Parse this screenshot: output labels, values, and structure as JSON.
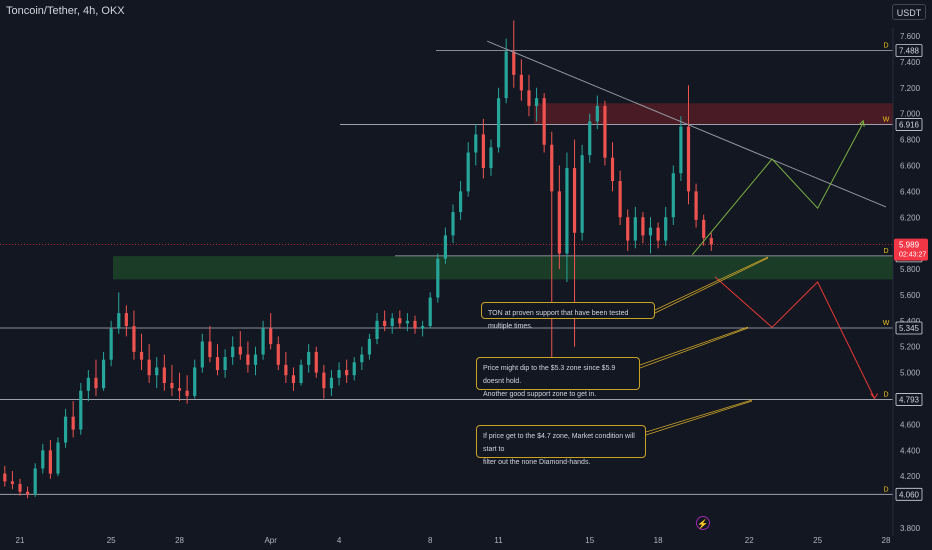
{
  "header": {
    "title": "Toncoin/Tether, 4h, OKX",
    "currency_button": "USDT"
  },
  "colors": {
    "background": "#131722",
    "up": "#26a69a",
    "down": "#ef5350",
    "trendline": "#9598a1",
    "support_zone": "#1f4a2a",
    "resistance_zone": "#5c1f27",
    "green_path": "#7cb342",
    "red_path": "#e53935",
    "note_border": "#c9a227",
    "price_tag": "#f23645"
  },
  "chart_data": {
    "type": "candlestick",
    "title": "Toncoin/Tether, 4h, OKX",
    "x_ticks": [
      "21",
      "25",
      "28",
      "Apr",
      "4",
      "8",
      "11",
      "15",
      "18",
      "22",
      "25",
      "28"
    ],
    "x_tick_dates": [
      "2024-03-21",
      "2024-03-25",
      "2024-03-28",
      "2024-04-01",
      "2024-04-04",
      "2024-04-08",
      "2024-04-11",
      "2024-04-15",
      "2024-04-18",
      "2024-04-22",
      "2024-04-25",
      "2024-04-28"
    ],
    "y_ticks": [
      7.6,
      7.4,
      7.2,
      7.0,
      6.8,
      6.6,
      6.4,
      6.2,
      6.0,
      5.8,
      5.6,
      5.4,
      5.2,
      5.0,
      4.8,
      4.6,
      4.4,
      4.2,
      4.0,
      3.8
    ],
    "y_tick_labels": [
      "7.600",
      "7.400",
      "7.200",
      "7.000",
      "6.800",
      "6.600",
      "6.400",
      "6.200",
      "",
      "5.800",
      "5.600",
      "5.400",
      "5.200",
      "5.000",
      "",
      "4.600",
      "4.400",
      "4.200",
      "",
      "3.800"
    ],
    "ylim": [
      3.75,
      7.75
    ],
    "xlim": [
      "2024-03-21",
      "2024-04-28"
    ],
    "current_price": {
      "value": 5.989,
      "label": "5.989",
      "countdown": "02:43:27"
    },
    "levels": [
      {
        "value": 7.488,
        "label": "7.488",
        "tag": "D"
      },
      {
        "value": 6.916,
        "label": "6.916",
        "tag": "W"
      },
      {
        "value": 5.902,
        "label": "5.902",
        "tag": "D"
      },
      {
        "value": 5.345,
        "label": "5.345",
        "tag": "W"
      },
      {
        "value": 4.793,
        "label": "4.793",
        "tag": "D"
      },
      {
        "value": 4.06,
        "label": "4.060",
        "tag": "D"
      }
    ],
    "support_zone": {
      "low": 5.72,
      "high": 5.9
    },
    "resistance_zone": {
      "low": 6.92,
      "high": 7.08
    },
    "trendline": [
      {
        "date": "2024-04-10 12:00",
        "value": 7.56
      },
      {
        "date": "2024-04-28",
        "value": 6.28
      }
    ],
    "projection_bull": [
      {
        "date": "2024-04-19 12:00",
        "value": 5.91
      },
      {
        "date": "2024-04-23",
        "value": 6.65
      },
      {
        "date": "2024-04-25",
        "value": 6.27
      },
      {
        "date": "2024-04-27",
        "value": 6.93
      }
    ],
    "projection_bear": [
      {
        "date": "2024-04-20 12:00",
        "value": 5.74
      },
      {
        "date": "2024-04-23",
        "value": 5.35
      },
      {
        "date": "2024-04-25",
        "value": 5.7
      },
      {
        "date": "2024-04-27 12:00",
        "value": 4.8
      }
    ],
    "annotations": [
      {
        "lines": [
          "TON at proven support that have been tested multiple times."
        ]
      },
      {
        "lines": [
          "Price might dip to the $5.3 zone since $5.9 doesnt hold.",
          "Another good support zone to get in."
        ]
      },
      {
        "lines": [
          "If price get to the $4.7 zone, Market condition will start to",
          "filter out the none Diamond-hands."
        ]
      }
    ],
    "candles": [
      {
        "date": "2024-03-20 00:00",
        "o": 4.3,
        "h": 4.35,
        "l": 4.18,
        "c": 4.22
      },
      {
        "date": "2024-03-20 08:00",
        "o": 4.22,
        "h": 4.28,
        "l": 4.12,
        "c": 4.16
      },
      {
        "date": "2024-03-20 16:00",
        "o": 4.16,
        "h": 4.24,
        "l": 4.1,
        "c": 4.14
      },
      {
        "date": "2024-03-21 00:00",
        "o": 4.14,
        "h": 4.18,
        "l": 4.05,
        "c": 4.08
      },
      {
        "date": "2024-03-21 08:00",
        "o": 4.08,
        "h": 4.12,
        "l": 4.03,
        "c": 4.06
      },
      {
        "date": "2024-03-21 16:00",
        "o": 4.06,
        "h": 4.3,
        "l": 4.04,
        "c": 4.26
      },
      {
        "date": "2024-03-22 00:00",
        "o": 4.26,
        "h": 4.45,
        "l": 4.22,
        "c": 4.4
      },
      {
        "date": "2024-03-22 08:00",
        "o": 4.4,
        "h": 4.48,
        "l": 4.18,
        "c": 4.22
      },
      {
        "date": "2024-03-22 16:00",
        "o": 4.22,
        "h": 4.5,
        "l": 4.2,
        "c": 4.46
      },
      {
        "date": "2024-03-23 00:00",
        "o": 4.46,
        "h": 4.72,
        "l": 4.42,
        "c": 4.66
      },
      {
        "date": "2024-03-23 08:00",
        "o": 4.66,
        "h": 4.78,
        "l": 4.5,
        "c": 4.56
      },
      {
        "date": "2024-03-23 16:00",
        "o": 4.56,
        "h": 4.92,
        "l": 4.52,
        "c": 4.86
      },
      {
        "date": "2024-03-24 00:00",
        "o": 4.86,
        "h": 5.02,
        "l": 4.78,
        "c": 4.96
      },
      {
        "date": "2024-03-24 08:00",
        "o": 4.96,
        "h": 5.1,
        "l": 4.82,
        "c": 4.88
      },
      {
        "date": "2024-03-24 16:00",
        "o": 4.88,
        "h": 5.16,
        "l": 4.86,
        "c": 5.1
      },
      {
        "date": "2024-03-25 00:00",
        "o": 5.1,
        "h": 5.4,
        "l": 5.05,
        "c": 5.34
      },
      {
        "date": "2024-03-25 08:00",
        "o": 5.34,
        "h": 5.62,
        "l": 5.3,
        "c": 5.46
      },
      {
        "date": "2024-03-25 16:00",
        "o": 5.46,
        "h": 5.52,
        "l": 5.28,
        "c": 5.36
      },
      {
        "date": "2024-03-26 00:00",
        "o": 5.36,
        "h": 5.48,
        "l": 5.1,
        "c": 5.16
      },
      {
        "date": "2024-03-26 08:00",
        "o": 5.16,
        "h": 5.3,
        "l": 5.02,
        "c": 5.1
      },
      {
        "date": "2024-03-26 16:00",
        "o": 5.1,
        "h": 5.22,
        "l": 4.92,
        "c": 4.98
      },
      {
        "date": "2024-03-27 00:00",
        "o": 4.98,
        "h": 5.12,
        "l": 4.88,
        "c": 5.04
      },
      {
        "date": "2024-03-27 08:00",
        "o": 5.04,
        "h": 5.14,
        "l": 4.86,
        "c": 4.92
      },
      {
        "date": "2024-03-27 16:00",
        "o": 4.92,
        "h": 5.06,
        "l": 4.82,
        "c": 4.88
      },
      {
        "date": "2024-03-28 00:00",
        "o": 4.88,
        "h": 5.0,
        "l": 4.78,
        "c": 4.86
      },
      {
        "date": "2024-03-28 08:00",
        "o": 4.86,
        "h": 4.98,
        "l": 4.76,
        "c": 4.82
      },
      {
        "date": "2024-03-28 16:00",
        "o": 4.82,
        "h": 5.1,
        "l": 4.8,
        "c": 5.04
      },
      {
        "date": "2024-03-29 00:00",
        "o": 5.04,
        "h": 5.3,
        "l": 5.0,
        "c": 5.24
      },
      {
        "date": "2024-03-29 08:00",
        "o": 5.24,
        "h": 5.36,
        "l": 5.08,
        "c": 5.12
      },
      {
        "date": "2024-03-29 16:00",
        "o": 5.12,
        "h": 5.22,
        "l": 4.98,
        "c": 5.02
      },
      {
        "date": "2024-03-30 00:00",
        "o": 5.02,
        "h": 5.18,
        "l": 4.96,
        "c": 5.12
      },
      {
        "date": "2024-03-30 08:00",
        "o": 5.12,
        "h": 5.28,
        "l": 5.06,
        "c": 5.2
      },
      {
        "date": "2024-03-30 16:00",
        "o": 5.2,
        "h": 5.32,
        "l": 5.1,
        "c": 5.14
      },
      {
        "date": "2024-03-31 00:00",
        "o": 5.14,
        "h": 5.24,
        "l": 5.0,
        "c": 5.06
      },
      {
        "date": "2024-03-31 08:00",
        "o": 5.06,
        "h": 5.2,
        "l": 4.98,
        "c": 5.14
      },
      {
        "date": "2024-03-31 16:00",
        "o": 5.14,
        "h": 5.4,
        "l": 5.1,
        "c": 5.34
      },
      {
        "date": "2024-04-01 00:00",
        "o": 5.34,
        "h": 5.46,
        "l": 5.18,
        "c": 5.22
      },
      {
        "date": "2024-04-01 08:00",
        "o": 5.22,
        "h": 5.28,
        "l": 5.02,
        "c": 5.06
      },
      {
        "date": "2024-04-01 16:00",
        "o": 5.06,
        "h": 5.16,
        "l": 4.92,
        "c": 4.98
      },
      {
        "date": "2024-04-02 00:00",
        "o": 4.98,
        "h": 5.04,
        "l": 4.86,
        "c": 4.92
      },
      {
        "date": "2024-04-02 08:00",
        "o": 4.92,
        "h": 5.1,
        "l": 4.9,
        "c": 5.06
      },
      {
        "date": "2024-04-02 16:00",
        "o": 5.06,
        "h": 5.22,
        "l": 5.0,
        "c": 5.16
      },
      {
        "date": "2024-04-03 00:00",
        "o": 5.16,
        "h": 5.2,
        "l": 4.96,
        "c": 5.0
      },
      {
        "date": "2024-04-03 08:00",
        "o": 5.0,
        "h": 5.06,
        "l": 4.8,
        "c": 4.88
      },
      {
        "date": "2024-04-03 16:00",
        "o": 4.88,
        "h": 5.02,
        "l": 4.82,
        "c": 4.96
      },
      {
        "date": "2024-04-04 00:00",
        "o": 4.96,
        "h": 5.08,
        "l": 4.9,
        "c": 5.02
      },
      {
        "date": "2024-04-04 08:00",
        "o": 5.02,
        "h": 5.1,
        "l": 4.92,
        "c": 4.98
      },
      {
        "date": "2024-04-04 16:00",
        "o": 4.98,
        "h": 5.12,
        "l": 4.94,
        "c": 5.08
      },
      {
        "date": "2024-04-05 00:00",
        "o": 5.08,
        "h": 5.2,
        "l": 5.02,
        "c": 5.14
      },
      {
        "date": "2024-04-05 08:00",
        "o": 5.14,
        "h": 5.3,
        "l": 5.1,
        "c": 5.26
      },
      {
        "date": "2024-04-05 16:00",
        "o": 5.26,
        "h": 5.46,
        "l": 5.22,
        "c": 5.4
      },
      {
        "date": "2024-04-06 00:00",
        "o": 5.4,
        "h": 5.48,
        "l": 5.32,
        "c": 5.36
      },
      {
        "date": "2024-04-06 08:00",
        "o": 5.36,
        "h": 5.46,
        "l": 5.3,
        "c": 5.42
      },
      {
        "date": "2024-04-06 16:00",
        "o": 5.42,
        "h": 5.48,
        "l": 5.34,
        "c": 5.38
      },
      {
        "date": "2024-04-07 00:00",
        "o": 5.38,
        "h": 5.46,
        "l": 5.32,
        "c": 5.4
      },
      {
        "date": "2024-04-07 08:00",
        "o": 5.4,
        "h": 5.44,
        "l": 5.3,
        "c": 5.34
      },
      {
        "date": "2024-04-07 16:00",
        "o": 5.34,
        "h": 5.4,
        "l": 5.28,
        "c": 5.36
      },
      {
        "date": "2024-04-08 00:00",
        "o": 5.36,
        "h": 5.62,
        "l": 5.34,
        "c": 5.58
      },
      {
        "date": "2024-04-08 08:00",
        "o": 5.58,
        "h": 5.92,
        "l": 5.54,
        "c": 5.88
      },
      {
        "date": "2024-04-08 16:00",
        "o": 5.88,
        "h": 6.12,
        "l": 5.84,
        "c": 6.06
      },
      {
        "date": "2024-04-09 00:00",
        "o": 6.06,
        "h": 6.3,
        "l": 6.0,
        "c": 6.24
      },
      {
        "date": "2024-04-09 08:00",
        "o": 6.24,
        "h": 6.48,
        "l": 6.18,
        "c": 6.4
      },
      {
        "date": "2024-04-09 16:00",
        "o": 6.4,
        "h": 6.78,
        "l": 6.36,
        "c": 6.7
      },
      {
        "date": "2024-04-10 00:00",
        "o": 6.7,
        "h": 6.92,
        "l": 6.6,
        "c": 6.84
      },
      {
        "date": "2024-04-10 08:00",
        "o": 6.84,
        "h": 6.96,
        "l": 6.5,
        "c": 6.58
      },
      {
        "date": "2024-04-10 16:00",
        "o": 6.58,
        "h": 6.8,
        "l": 6.52,
        "c": 6.74
      },
      {
        "date": "2024-04-11 00:00",
        "o": 6.74,
        "h": 7.2,
        "l": 6.7,
        "c": 7.12
      },
      {
        "date": "2024-04-11 08:00",
        "o": 7.12,
        "h": 7.58,
        "l": 7.08,
        "c": 7.48
      },
      {
        "date": "2024-04-11 16:00",
        "o": 7.48,
        "h": 7.72,
        "l": 7.2,
        "c": 7.3
      },
      {
        "date": "2024-04-12 00:00",
        "o": 7.3,
        "h": 7.42,
        "l": 7.1,
        "c": 7.18
      },
      {
        "date": "2024-04-12 08:00",
        "o": 7.18,
        "h": 7.3,
        "l": 6.98,
        "c": 7.06
      },
      {
        "date": "2024-04-12 16:00",
        "o": 7.06,
        "h": 7.2,
        "l": 6.94,
        "c": 7.12
      },
      {
        "date": "2024-04-13 00:00",
        "o": 7.12,
        "h": 7.16,
        "l": 6.7,
        "c": 6.76
      },
      {
        "date": "2024-04-13 08:00",
        "o": 6.76,
        "h": 6.86,
        "l": 5.0,
        "c": 6.4
      },
      {
        "date": "2024-04-13 16:00",
        "o": 6.4,
        "h": 6.6,
        "l": 5.8,
        "c": 5.92
      },
      {
        "date": "2024-04-14 00:00",
        "o": 5.92,
        "h": 6.7,
        "l": 5.7,
        "c": 6.58
      },
      {
        "date": "2024-04-14 08:00",
        "o": 6.58,
        "h": 6.8,
        "l": 5.2,
        "c": 6.08
      },
      {
        "date": "2024-04-14 16:00",
        "o": 6.08,
        "h": 6.76,
        "l": 6.02,
        "c": 6.68
      },
      {
        "date": "2024-04-15 00:00",
        "o": 6.68,
        "h": 7.0,
        "l": 6.62,
        "c": 6.94
      },
      {
        "date": "2024-04-15 08:00",
        "o": 6.94,
        "h": 7.14,
        "l": 6.88,
        "c": 7.06
      },
      {
        "date": "2024-04-15 16:00",
        "o": 7.06,
        "h": 7.1,
        "l": 6.6,
        "c": 6.66
      },
      {
        "date": "2024-04-16 00:00",
        "o": 6.66,
        "h": 6.78,
        "l": 6.4,
        "c": 6.48
      },
      {
        "date": "2024-04-16 08:00",
        "o": 6.48,
        "h": 6.56,
        "l": 6.14,
        "c": 6.2
      },
      {
        "date": "2024-04-16 16:00",
        "o": 6.2,
        "h": 6.26,
        "l": 5.94,
        "c": 6.02
      },
      {
        "date": "2024-04-17 00:00",
        "o": 6.02,
        "h": 6.28,
        "l": 5.96,
        "c": 6.2
      },
      {
        "date": "2024-04-17 08:00",
        "o": 6.2,
        "h": 6.24,
        "l": 6.0,
        "c": 6.06
      },
      {
        "date": "2024-04-17 16:00",
        "o": 6.06,
        "h": 6.2,
        "l": 5.92,
        "c": 6.12
      },
      {
        "date": "2024-04-18 00:00",
        "o": 6.12,
        "h": 6.16,
        "l": 5.96,
        "c": 6.02
      },
      {
        "date": "2024-04-18 08:00",
        "o": 6.02,
        "h": 6.28,
        "l": 5.98,
        "c": 6.2
      },
      {
        "date": "2024-04-18 16:00",
        "o": 6.2,
        "h": 6.6,
        "l": 6.14,
        "c": 6.54
      },
      {
        "date": "2024-04-19 00:00",
        "o": 6.54,
        "h": 6.98,
        "l": 6.48,
        "c": 6.9
      },
      {
        "date": "2024-04-19 08:00",
        "o": 6.9,
        "h": 7.22,
        "l": 6.3,
        "c": 6.4
      },
      {
        "date": "2024-04-19 16:00",
        "o": 6.4,
        "h": 6.46,
        "l": 6.12,
        "c": 6.18
      },
      {
        "date": "2024-04-20 00:00",
        "o": 6.18,
        "h": 6.22,
        "l": 5.98,
        "c": 6.04
      },
      {
        "date": "2024-04-20 08:00",
        "o": 6.04,
        "h": 6.08,
        "l": 5.94,
        "c": 5.989
      }
    ]
  }
}
